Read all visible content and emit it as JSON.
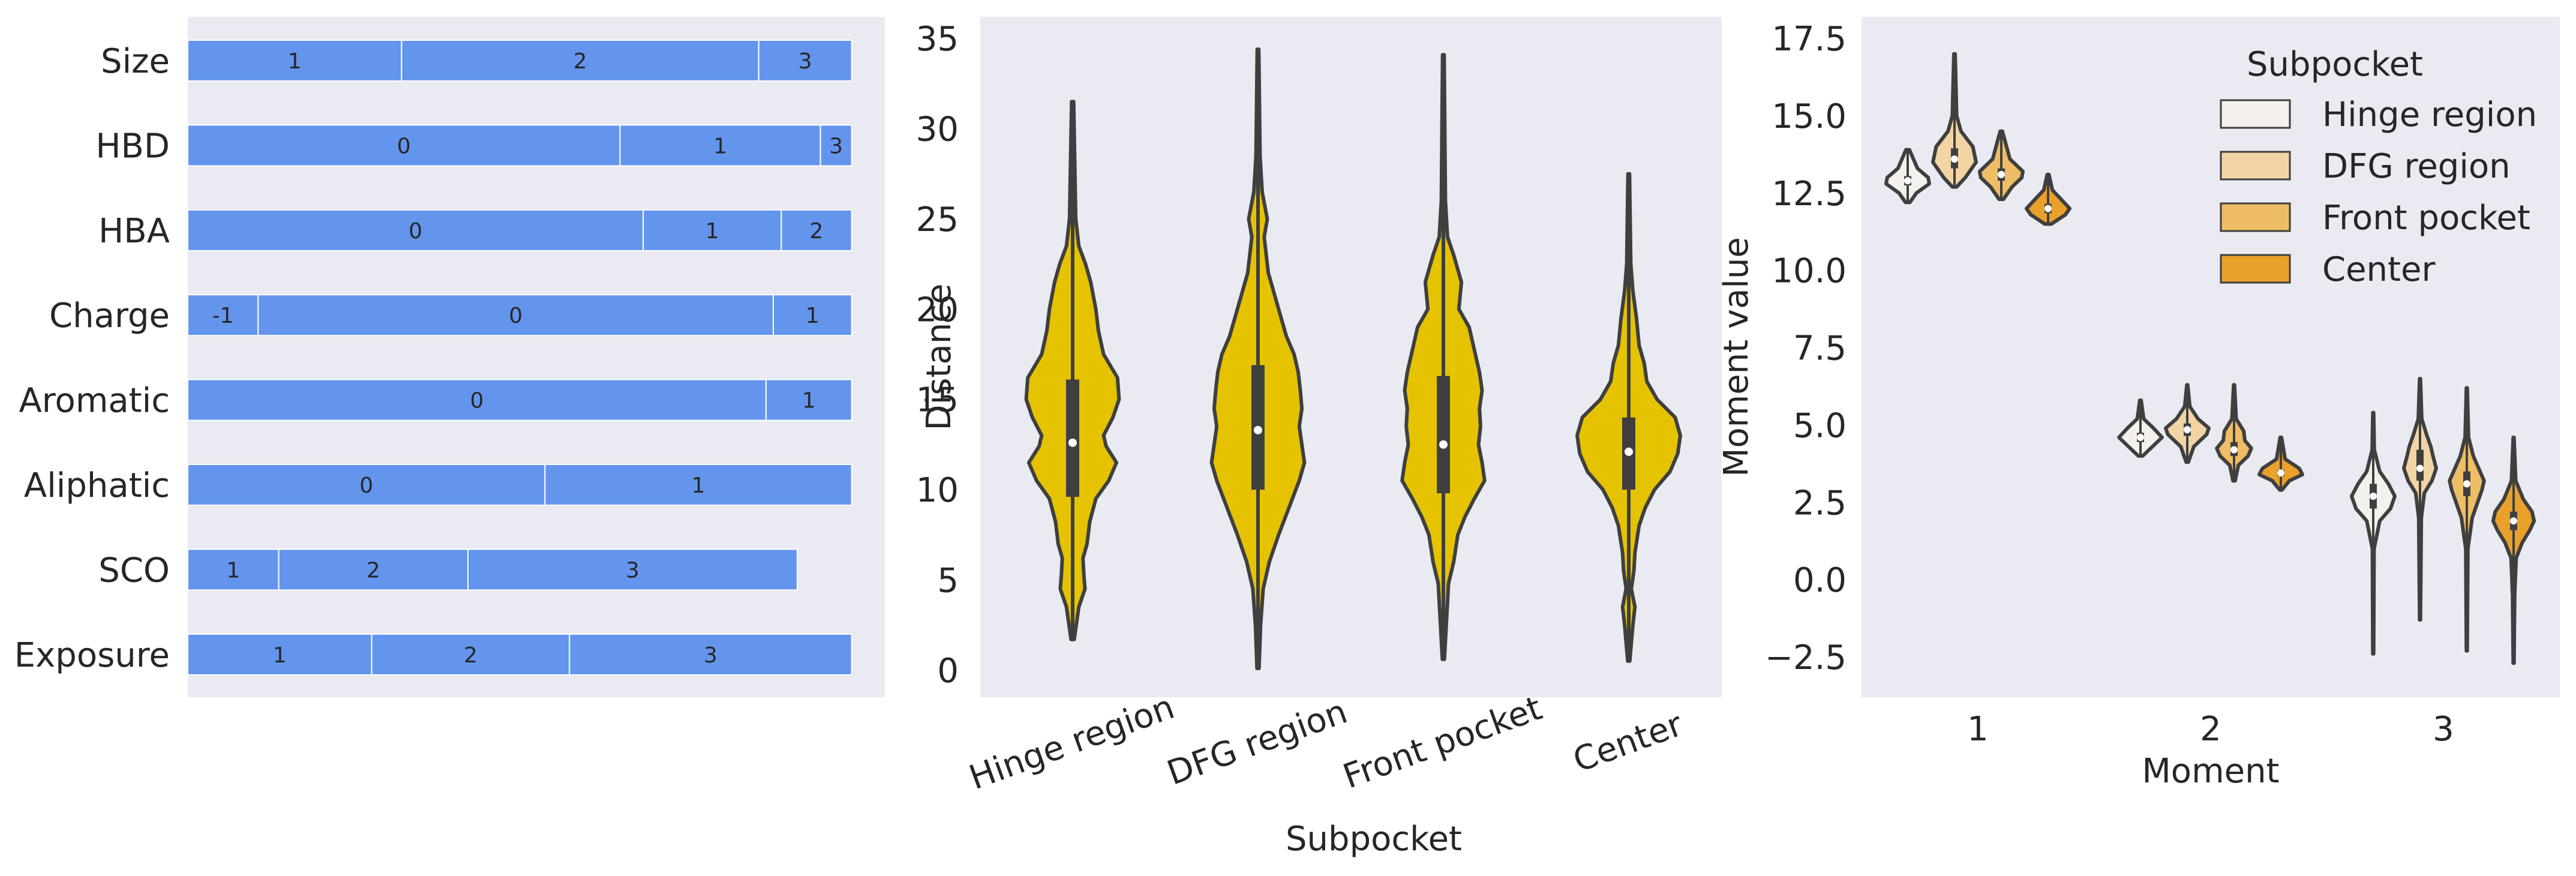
{
  "chart_data": [
    {
      "type": "bar",
      "subtype": "stacked-horizontal",
      "bar_color": "#6495ed",
      "categories": [
        "Size",
        "HBD",
        "HBA",
        "Charge",
        "Aromatic",
        "Aliphatic",
        "SCO",
        "Exposure"
      ],
      "bars": [
        {
          "category": "Size",
          "segments": [
            {
              "label": "1",
              "value": 32.2
            },
            {
              "label": "2",
              "value": 53.8
            },
            {
              "label": "3",
              "value": 14.0
            }
          ]
        },
        {
          "category": "HBD",
          "segments": [
            {
              "label": "0",
              "value": 65.1
            },
            {
              "label": "1",
              "value": 30.2
            },
            {
              "label": "3",
              "value": 4.7
            }
          ]
        },
        {
          "category": "HBA",
          "segments": [
            {
              "label": "0",
              "value": 68.6
            },
            {
              "label": "1",
              "value": 20.8
            },
            {
              "label": "2",
              "value": 10.6
            }
          ]
        },
        {
          "category": "Charge",
          "segments": [
            {
              "label": "-1",
              "value": 10.6
            },
            {
              "label": "0",
              "value": 77.6
            },
            {
              "label": "1",
              "value": 11.8
            }
          ]
        },
        {
          "category": "Aromatic",
          "segments": [
            {
              "label": "0",
              "value": 87.1
            },
            {
              "label": "1",
              "value": 12.9
            }
          ]
        },
        {
          "category": "Aliphatic",
          "segments": [
            {
              "label": "0",
              "value": 53.8
            },
            {
              "label": "1",
              "value": 46.2
            }
          ]
        },
        {
          "category": "SCO",
          "segments": [
            {
              "label": "1",
              "value": 13.7
            },
            {
              "label": "2",
              "value": 28.5
            },
            {
              "label": "3",
              "value": 49.6
            }
          ]
        },
        {
          "category": "Exposure",
          "segments": [
            {
              "label": "1",
              "value": 27.7
            },
            {
              "label": "2",
              "value": 29.8
            },
            {
              "label": "3",
              "value": 42.5
            }
          ]
        }
      ],
      "xlim": [
        0,
        105
      ]
    },
    {
      "type": "violin",
      "color": "#e6c300",
      "xlabel": "Subpocket",
      "ylabel": "Distance",
      "categories": [
        "Hinge region",
        "DFG region",
        "Front pocket",
        "Center"
      ],
      "yticks": [
        0,
        5,
        10,
        15,
        20,
        25,
        30,
        35
      ],
      "ylim": [
        -1.5,
        36.2
      ],
      "violins": [
        {
          "category": "Hinge region",
          "min": 1.7,
          "max": 31.5,
          "q1": 9.6,
          "median": 12.6,
          "q3": 16.1,
          "profile": [
            [
              1.7,
              0.03
            ],
            [
              3.5,
              0.12
            ],
            [
              4.5,
              0.24
            ],
            [
              5.2,
              0.22
            ],
            [
              6.2,
              0.2
            ],
            [
              7.0,
              0.28
            ],
            [
              8.2,
              0.33
            ],
            [
              9.5,
              0.45
            ],
            [
              10.5,
              0.7
            ],
            [
              11.5,
              0.85
            ],
            [
              12.4,
              0.65
            ],
            [
              13.0,
              0.6
            ],
            [
              14.0,
              0.78
            ],
            [
              15.0,
              0.9
            ],
            [
              16.2,
              0.87
            ],
            [
              17.5,
              0.6
            ],
            [
              18.8,
              0.5
            ],
            [
              20.0,
              0.45
            ],
            [
              21.5,
              0.35
            ],
            [
              22.5,
              0.25
            ],
            [
              23.5,
              0.12
            ],
            [
              25.0,
              0.06
            ],
            [
              31.5,
              0.02
            ]
          ]
        },
        {
          "category": "DFG region",
          "min": 0.1,
          "max": 34.4,
          "q1": 10.0,
          "median": 13.3,
          "q3": 16.9,
          "profile": [
            [
              0.1,
              0.02
            ],
            [
              2.5,
              0.05
            ],
            [
              4.5,
              0.1
            ],
            [
              6.0,
              0.22
            ],
            [
              7.5,
              0.4
            ],
            [
              9.0,
              0.6
            ],
            [
              10.5,
              0.8
            ],
            [
              11.5,
              0.9
            ],
            [
              12.5,
              0.85
            ],
            [
              13.5,
              0.8
            ],
            [
              14.5,
              0.85
            ],
            [
              15.5,
              0.82
            ],
            [
              16.5,
              0.78
            ],
            [
              17.5,
              0.7
            ],
            [
              18.5,
              0.55
            ],
            [
              20.0,
              0.4
            ],
            [
              22.0,
              0.2
            ],
            [
              24.0,
              0.12
            ],
            [
              25.0,
              0.18
            ],
            [
              26.5,
              0.08
            ],
            [
              28.5,
              0.04
            ],
            [
              34.4,
              0.015
            ]
          ]
        },
        {
          "category": "Front pocket",
          "min": 0.6,
          "max": 34.1,
          "q1": 9.8,
          "median": 12.5,
          "q3": 16.3,
          "profile": [
            [
              0.6,
              0.02
            ],
            [
              4.8,
              0.1
            ],
            [
              6.0,
              0.2
            ],
            [
              7.5,
              0.28
            ],
            [
              8.5,
              0.42
            ],
            [
              9.5,
              0.6
            ],
            [
              10.5,
              0.8
            ],
            [
              11.5,
              0.75
            ],
            [
              12.5,
              0.68
            ],
            [
              13.5,
              0.72
            ],
            [
              14.5,
              0.7
            ],
            [
              15.5,
              0.75
            ],
            [
              16.5,
              0.7
            ],
            [
              17.5,
              0.62
            ],
            [
              19.0,
              0.5
            ],
            [
              20.0,
              0.3
            ],
            [
              21.5,
              0.35
            ],
            [
              23.0,
              0.2
            ],
            [
              24.0,
              0.08
            ],
            [
              26.0,
              0.04
            ],
            [
              34.1,
              0.015
            ]
          ]
        },
        {
          "category": "Center",
          "min": 0.5,
          "max": 27.5,
          "q1": 10.0,
          "median": 12.1,
          "q3": 14.0,
          "profile": [
            [
              0.5,
              0.02
            ],
            [
              2.5,
              0.08
            ],
            [
              3.5,
              0.12
            ],
            [
              4.5,
              0.05
            ],
            [
              5.5,
              0.1
            ],
            [
              6.5,
              0.12
            ],
            [
              8.0,
              0.2
            ],
            [
              9.0,
              0.32
            ],
            [
              10.0,
              0.5
            ],
            [
              11.0,
              0.8
            ],
            [
              12.0,
              0.95
            ],
            [
              13.0,
              1.0
            ],
            [
              14.0,
              0.9
            ],
            [
              15.0,
              0.55
            ],
            [
              16.0,
              0.35
            ],
            [
              17.0,
              0.3
            ],
            [
              18.0,
              0.2
            ],
            [
              19.5,
              0.15
            ],
            [
              21.0,
              0.08
            ],
            [
              22.5,
              0.04
            ],
            [
              27.5,
              0.015
            ]
          ]
        }
      ]
    },
    {
      "type": "violin",
      "subtype": "grouped",
      "xlabel": "Moment",
      "ylabel": "Moment value",
      "categories": [
        "1",
        "2",
        "3"
      ],
      "yticks": [
        -2.5,
        0.0,
        2.5,
        5.0,
        7.5,
        10.0,
        12.5,
        15.0,
        17.5
      ],
      "ytick_labels": [
        "−2.5",
        "0.0",
        "2.5",
        "5.0",
        "7.5",
        "10.0",
        "12.5",
        "15.0",
        "17.5"
      ],
      "ylim": [
        -3.8,
        18.2
      ],
      "legend": {
        "title": "Subpocket",
        "position": "upper right"
      },
      "series": [
        {
          "name": "Hinge region",
          "color": "#f4f0eb"
        },
        {
          "name": "DFG region",
          "color": "#f2d4a5"
        },
        {
          "name": "Front pocket",
          "color": "#eebd66"
        },
        {
          "name": "Center",
          "color": "#e9a12b"
        }
      ],
      "violins": [
        {
          "moment": "1",
          "series": "Hinge region",
          "min": 12.2,
          "max": 13.9,
          "q1": 12.75,
          "median": 12.9,
          "q3": 13.05,
          "profile": [
            [
              12.2,
              0.1
            ],
            [
              12.5,
              0.4
            ],
            [
              12.8,
              1.0
            ],
            [
              13.0,
              0.95
            ],
            [
              13.3,
              0.45
            ],
            [
              13.9,
              0.08
            ]
          ]
        },
        {
          "moment": "1",
          "series": "DFG region",
          "min": 12.7,
          "max": 17.0,
          "q1": 13.3,
          "median": 13.6,
          "q3": 13.95,
          "profile": [
            [
              12.7,
              0.1
            ],
            [
              13.0,
              0.5
            ],
            [
              13.5,
              1.0
            ],
            [
              14.0,
              0.85
            ],
            [
              14.5,
              0.3
            ],
            [
              15.0,
              0.1
            ],
            [
              17.0,
              0.03
            ]
          ]
        },
        {
          "moment": "1",
          "series": "Front pocket",
          "min": 12.3,
          "max": 14.5,
          "q1": 12.9,
          "median": 13.1,
          "q3": 13.3,
          "profile": [
            [
              12.3,
              0.1
            ],
            [
              12.7,
              0.5
            ],
            [
              13.0,
              0.95
            ],
            [
              13.2,
              1.0
            ],
            [
              13.6,
              0.4
            ],
            [
              14.5,
              0.05
            ]
          ]
        },
        {
          "moment": "1",
          "series": "Center",
          "min": 11.5,
          "max": 13.1,
          "q1": 11.85,
          "median": 12.0,
          "q3": 12.15,
          "profile": [
            [
              11.5,
              0.15
            ],
            [
              11.8,
              0.8
            ],
            [
              12.0,
              1.0
            ],
            [
              12.3,
              0.6
            ],
            [
              12.6,
              0.2
            ],
            [
              13.1,
              0.04
            ]
          ]
        },
        {
          "moment": "2",
          "series": "Hinge region",
          "min": 4.0,
          "max": 5.8,
          "q1": 4.45,
          "median": 4.6,
          "q3": 4.75,
          "profile": [
            [
              4.0,
              0.1
            ],
            [
              4.3,
              0.55
            ],
            [
              4.6,
              1.0
            ],
            [
              4.9,
              0.6
            ],
            [
              5.2,
              0.15
            ],
            [
              5.8,
              0.03
            ]
          ]
        },
        {
          "moment": "2",
          "series": "DFG region",
          "min": 3.8,
          "max": 6.3,
          "q1": 4.65,
          "median": 4.85,
          "q3": 5.05,
          "profile": [
            [
              3.8,
              0.05
            ],
            [
              4.3,
              0.3
            ],
            [
              4.7,
              0.9
            ],
            [
              4.9,
              1.0
            ],
            [
              5.2,
              0.5
            ],
            [
              5.6,
              0.12
            ],
            [
              6.3,
              0.02
            ]
          ]
        },
        {
          "moment": "2",
          "series": "Front pocket",
          "min": 3.2,
          "max": 6.3,
          "q1": 4.0,
          "median": 4.2,
          "q3": 4.45,
          "profile": [
            [
              3.2,
              0.05
            ],
            [
              3.7,
              0.2
            ],
            [
              4.0,
              0.65
            ],
            [
              4.25,
              0.8
            ],
            [
              4.5,
              0.5
            ],
            [
              4.8,
              0.45
            ],
            [
              5.2,
              0.1
            ],
            [
              6.3,
              0.02
            ]
          ]
        },
        {
          "moment": "2",
          "series": "Center",
          "min": 2.9,
          "max": 4.6,
          "q1": 3.35,
          "median": 3.45,
          "q3": 3.55,
          "profile": [
            [
              2.9,
              0.05
            ],
            [
              3.2,
              0.4
            ],
            [
              3.4,
              1.0
            ],
            [
              3.6,
              0.85
            ],
            [
              3.9,
              0.2
            ],
            [
              4.6,
              0.03
            ]
          ]
        },
        {
          "moment": "3",
          "series": "Hinge region",
          "min": -2.4,
          "max": 5.4,
          "q1": 2.3,
          "median": 2.7,
          "q3": 3.1,
          "profile": [
            [
              -2.4,
              0.02
            ],
            [
              1.0,
              0.04
            ],
            [
              1.9,
              0.3
            ],
            [
              2.3,
              0.8
            ],
            [
              2.7,
              1.0
            ],
            [
              3.1,
              0.7
            ],
            [
              3.5,
              0.3
            ],
            [
              4.2,
              0.05
            ],
            [
              5.4,
              0.02
            ]
          ]
        },
        {
          "moment": "3",
          "series": "DFG region",
          "min": -1.3,
          "max": 6.5,
          "q1": 3.2,
          "median": 3.6,
          "q3": 4.2,
          "profile": [
            [
              -1.3,
              0.02
            ],
            [
              2.0,
              0.06
            ],
            [
              2.8,
              0.2
            ],
            [
              3.2,
              0.55
            ],
            [
              3.6,
              0.75
            ],
            [
              4.0,
              0.6
            ],
            [
              4.3,
              0.5
            ],
            [
              4.7,
              0.3
            ],
            [
              5.2,
              0.08
            ],
            [
              6.5,
              0.02
            ]
          ]
        },
        {
          "moment": "3",
          "series": "Front pocket",
          "min": -2.3,
          "max": 6.2,
          "q1": 2.7,
          "median": 3.1,
          "q3": 3.5,
          "profile": [
            [
              -2.3,
              0.02
            ],
            [
              1.0,
              0.05
            ],
            [
              2.0,
              0.25
            ],
            [
              2.5,
              0.5
            ],
            [
              2.9,
              0.7
            ],
            [
              3.2,
              0.8
            ],
            [
              3.6,
              0.55
            ],
            [
              4.0,
              0.3
            ],
            [
              4.6,
              0.08
            ],
            [
              6.2,
              0.02
            ]
          ]
        },
        {
          "moment": "3",
          "series": "Center",
          "min": -2.7,
          "max": 4.6,
          "q1": 1.6,
          "median": 1.9,
          "q3": 2.2,
          "profile": [
            [
              -2.7,
              0.02
            ],
            [
              -0.5,
              0.05
            ],
            [
              0.7,
              0.12
            ],
            [
              1.2,
              0.4
            ],
            [
              1.6,
              0.75
            ],
            [
              1.9,
              0.95
            ],
            [
              2.2,
              0.85
            ],
            [
              2.6,
              0.45
            ],
            [
              3.2,
              0.1
            ],
            [
              4.6,
              0.02
            ]
          ]
        }
      ]
    }
  ]
}
